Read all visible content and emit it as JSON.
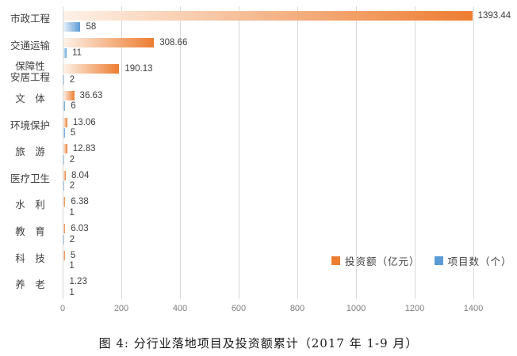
{
  "chart_data": {
    "type": "bar",
    "orientation": "horizontal",
    "caption": "图 4: 分行业落地项目及投资额累计（2017 年 1-9 月）",
    "categories": [
      "市政工程",
      "交通运输",
      "保障性\n安居工程",
      "文　体",
      "环境保护",
      "旅　游",
      "医疗卫生",
      "水　利",
      "教　育",
      "科　技",
      "养　老"
    ],
    "series": [
      {
        "name": "投资额（亿元）",
        "color": "#ed7d31",
        "color_light": "#fdf1e7",
        "values": [
          1393.44,
          308.66,
          190.13,
          36.63,
          13.06,
          12.83,
          8.04,
          6.38,
          6.03,
          5,
          1.23
        ],
        "labels": [
          "1393.44",
          "308.66",
          "190.13",
          "36.63",
          "13.06",
          "12.83",
          "8.04",
          "6.38",
          "6.03",
          "5",
          "1.23"
        ]
      },
      {
        "name": "项目数（个）",
        "color": "#5b9bd5",
        "color_light": "#e8f1f9",
        "values": [
          58,
          11,
          2,
          6,
          5,
          2,
          2,
          1,
          2,
          1,
          1
        ],
        "labels": [
          "58",
          "11",
          "2",
          "6",
          "5",
          "2",
          "2",
          "1",
          "2",
          "1",
          "1"
        ]
      }
    ],
    "x_axis": {
      "min": 0,
      "max": 1400,
      "tick_step": 200,
      "ticks": [
        "0",
        "200",
        "400",
        "600",
        "800",
        "1000",
        "1200",
        "1400"
      ],
      "grid": true
    },
    "legend": {
      "position": "inside-bottom-right",
      "entries": [
        "投资额（亿元）",
        "项目数（个）"
      ]
    },
    "colors": {
      "gridline": "#d9d9d9",
      "tick_text": "#7f7f7f",
      "label_text": "#404040"
    }
  }
}
